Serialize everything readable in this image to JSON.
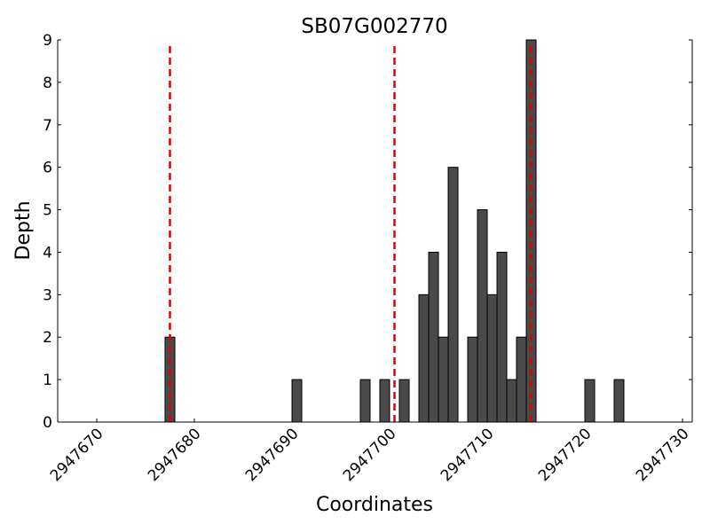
{
  "chart_data": {
    "type": "bar",
    "title": "SB07G002770",
    "xlabel": "Coordinates",
    "ylabel": "Depth",
    "xlim": [
      2947666,
      2947731
    ],
    "ylim": [
      0,
      9
    ],
    "xticks": [
      2947670,
      2947680,
      2947690,
      2947700,
      2947710,
      2947720,
      2947730
    ],
    "yticks": [
      0,
      1,
      2,
      3,
      4,
      5,
      6,
      7,
      8,
      9
    ],
    "bar_width": 1,
    "bar_color": "#4a4a4a",
    "bars": [
      {
        "x": 2947677.5,
        "depth": 2
      },
      {
        "x": 2947690.5,
        "depth": 1
      },
      {
        "x": 2947697.5,
        "depth": 1
      },
      {
        "x": 2947699.5,
        "depth": 1
      },
      {
        "x": 2947701.5,
        "depth": 1
      },
      {
        "x": 2947703.5,
        "depth": 3
      },
      {
        "x": 2947704.5,
        "depth": 4
      },
      {
        "x": 2947705.5,
        "depth": 2
      },
      {
        "x": 2947706.5,
        "depth": 6
      },
      {
        "x": 2947708.5,
        "depth": 2
      },
      {
        "x": 2947709.5,
        "depth": 5
      },
      {
        "x": 2947710.5,
        "depth": 3
      },
      {
        "x": 2947711.5,
        "depth": 4
      },
      {
        "x": 2947712.5,
        "depth": 1
      },
      {
        "x": 2947713.5,
        "depth": 2
      },
      {
        "x": 2947714.5,
        "depth": 9
      },
      {
        "x": 2947720.5,
        "depth": 1
      },
      {
        "x": 2947723.5,
        "depth": 1
      }
    ],
    "reference_lines": {
      "x": [
        2947677.5,
        2947700.5,
        2947714.5
      ],
      "color": "#e00000",
      "style": "dashed"
    },
    "grid": false,
    "legend": false
  }
}
